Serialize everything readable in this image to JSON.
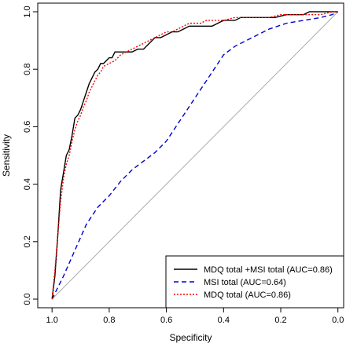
{
  "chart_data": {
    "type": "line",
    "title": "",
    "xlabel": "Specificity",
    "ylabel": "Sensitivity",
    "xlim": [
      1.05,
      -0.02
    ],
    "ylim": [
      -0.03,
      1.03
    ],
    "x_reversed": true,
    "grid": false,
    "legend_position": "bottom-right",
    "x_ticks": [
      {
        "value": 1.0,
        "label": "1.0"
      },
      {
        "value": 0.8,
        "label": "0.8"
      },
      {
        "value": 0.6,
        "label": "0.6"
      },
      {
        "value": 0.4,
        "label": "0.4"
      },
      {
        "value": 0.2,
        "label": "0.2"
      },
      {
        "value": 0.0,
        "label": "0.0"
      }
    ],
    "y_ticks": [
      {
        "value": 0.0,
        "label": "0.0"
      },
      {
        "value": 0.2,
        "label": "0.2"
      },
      {
        "value": 0.4,
        "label": "0.4"
      },
      {
        "value": 0.6,
        "label": "0.6"
      },
      {
        "value": 0.8,
        "label": "0.8"
      },
      {
        "value": 1.0,
        "label": "1.0"
      }
    ],
    "reference_line": {
      "x": [
        1.0,
        0.0
      ],
      "y": [
        0.0,
        1.0
      ],
      "color": "#aaaaaa"
    },
    "series": [
      {
        "name": "MDQ total +MSI total (AUC=0.86)",
        "color": "#000000",
        "dash": "solid",
        "x": [
          1.0,
          0.99,
          0.98,
          0.97,
          0.96,
          0.95,
          0.94,
          0.93,
          0.92,
          0.91,
          0.9,
          0.89,
          0.88,
          0.87,
          0.86,
          0.85,
          0.84,
          0.83,
          0.82,
          0.81,
          0.8,
          0.79,
          0.78,
          0.76,
          0.74,
          0.72,
          0.7,
          0.68,
          0.66,
          0.64,
          0.62,
          0.6,
          0.58,
          0.56,
          0.54,
          0.52,
          0.5,
          0.48,
          0.46,
          0.44,
          0.42,
          0.4,
          0.38,
          0.36,
          0.34,
          0.3,
          0.26,
          0.22,
          0.18,
          0.14,
          0.12,
          0.1,
          0.08,
          0.05,
          0.02,
          0.0
        ],
        "y": [
          0.0,
          0.08,
          0.22,
          0.38,
          0.44,
          0.5,
          0.52,
          0.57,
          0.63,
          0.64,
          0.66,
          0.69,
          0.72,
          0.75,
          0.77,
          0.79,
          0.8,
          0.82,
          0.82,
          0.83,
          0.84,
          0.84,
          0.86,
          0.86,
          0.86,
          0.86,
          0.87,
          0.87,
          0.89,
          0.91,
          0.91,
          0.92,
          0.93,
          0.93,
          0.94,
          0.95,
          0.95,
          0.95,
          0.95,
          0.95,
          0.96,
          0.97,
          0.97,
          0.97,
          0.98,
          0.98,
          0.98,
          0.98,
          0.99,
          0.99,
          0.99,
          1.0,
          1.0,
          1.0,
          1.0,
          1.0
        ]
      },
      {
        "name": "MSI total (AUC=0.64)",
        "color": "#0000cc",
        "dash": "dashed",
        "x": [
          1.0,
          0.96,
          0.92,
          0.88,
          0.84,
          0.8,
          0.76,
          0.72,
          0.68,
          0.64,
          0.6,
          0.56,
          0.52,
          0.48,
          0.44,
          0.4,
          0.36,
          0.3,
          0.24,
          0.18,
          0.12,
          0.06,
          0.02,
          0.0
        ],
        "y": [
          0.0,
          0.08,
          0.17,
          0.26,
          0.32,
          0.36,
          0.41,
          0.45,
          0.48,
          0.51,
          0.55,
          0.61,
          0.67,
          0.73,
          0.79,
          0.85,
          0.88,
          0.91,
          0.94,
          0.96,
          0.97,
          0.98,
          0.99,
          1.0
        ]
      },
      {
        "name": "MDQ total (AUC=0.86)",
        "color": "#ff0000",
        "dash": "dotted",
        "x": [
          1.0,
          0.99,
          0.98,
          0.97,
          0.96,
          0.95,
          0.94,
          0.93,
          0.92,
          0.91,
          0.9,
          0.89,
          0.88,
          0.87,
          0.86,
          0.85,
          0.84,
          0.83,
          0.82,
          0.8,
          0.78,
          0.76,
          0.74,
          0.72,
          0.7,
          0.68,
          0.66,
          0.64,
          0.62,
          0.6,
          0.58,
          0.56,
          0.54,
          0.52,
          0.5,
          0.48,
          0.46,
          0.44,
          0.42,
          0.4,
          0.36,
          0.32,
          0.28,
          0.24,
          0.2,
          0.14,
          0.1,
          0.06,
          0.02,
          0.0
        ],
        "y": [
          0.0,
          0.1,
          0.22,
          0.34,
          0.42,
          0.47,
          0.5,
          0.55,
          0.59,
          0.62,
          0.64,
          0.67,
          0.69,
          0.72,
          0.74,
          0.76,
          0.78,
          0.79,
          0.81,
          0.82,
          0.83,
          0.85,
          0.86,
          0.87,
          0.88,
          0.89,
          0.9,
          0.91,
          0.92,
          0.93,
          0.93,
          0.94,
          0.95,
          0.96,
          0.96,
          0.96,
          0.97,
          0.97,
          0.97,
          0.97,
          0.98,
          0.98,
          0.98,
          0.98,
          0.99,
          0.99,
          0.99,
          0.99,
          1.0,
          1.0
        ]
      }
    ]
  }
}
